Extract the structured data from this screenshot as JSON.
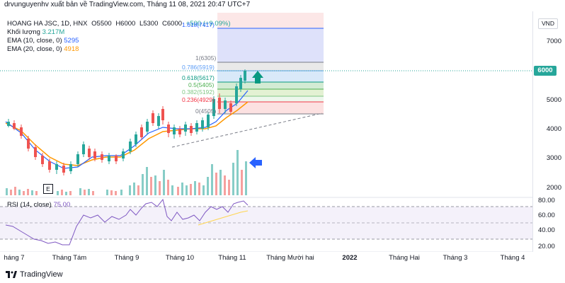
{
  "header": {
    "title": "drvunguyenhv xuất bản về TradingView.com, Tháng 11 08, 2021 20:47 UTC+7"
  },
  "legend": {
    "symbol": "HOANG HA JSC, 1D, HNX",
    "ohlc": {
      "open": "O5500",
      "high": "H6000",
      "low": "L5300",
      "close": "C6000",
      "change": "+500 (+9.09%)"
    },
    "volume_label": "Khối lượng",
    "volume_value": "3.217M",
    "ema10_label": "EMA (10, close, 0)",
    "ema10_value": "5295",
    "ema20_label": "EMA (20, close, 0)",
    "ema20_value": "4918"
  },
  "currency": "VND",
  "current_price": "6000",
  "price_ticks": [
    "7000",
    "6000",
    "5000",
    "4000",
    "3000",
    "2000"
  ],
  "fib": {
    "levels": [
      {
        "label": "1.618(7417)",
        "color": "#2962ff"
      },
      {
        "label": "1(6305)",
        "color": "#787b86"
      },
      {
        "label": "0.786(5919)",
        "color": "#5b9cf6"
      },
      {
        "label": "0.618(5617)",
        "color": "#089981"
      },
      {
        "label": "0.5(5405)",
        "color": "#4caf50"
      },
      {
        "label": "0.382(5192)",
        "color": "#81c784"
      },
      {
        "label": "0.236(4929)",
        "color": "#f23645"
      },
      {
        "label": "0(4505)",
        "color": "#787b86"
      }
    ]
  },
  "rsi": {
    "label": "RSI (14, close)",
    "value": "75.00",
    "ticks": [
      "80.00",
      "60.00",
      "40.00",
      "20.00"
    ]
  },
  "time_ticks": [
    "háng 7",
    "Tháng Tám",
    "Tháng 9",
    "Tháng 10",
    "Tháng 11",
    "Tháng Mười hai",
    "2022",
    "Tháng Hai",
    "Tháng 3",
    "Tháng 4"
  ],
  "footer": {
    "brand": "TradingView"
  },
  "icons": {
    "e_marker": "E",
    "up_arrow": "teal-up-arrow-icon",
    "left_arrow": "blue-left-arrow-icon"
  },
  "colors": {
    "up": "#26a69a",
    "down": "#ef5350",
    "ema10": "#2962ff",
    "ema20": "#ff9800",
    "rsi": "#7e57c2"
  }
}
